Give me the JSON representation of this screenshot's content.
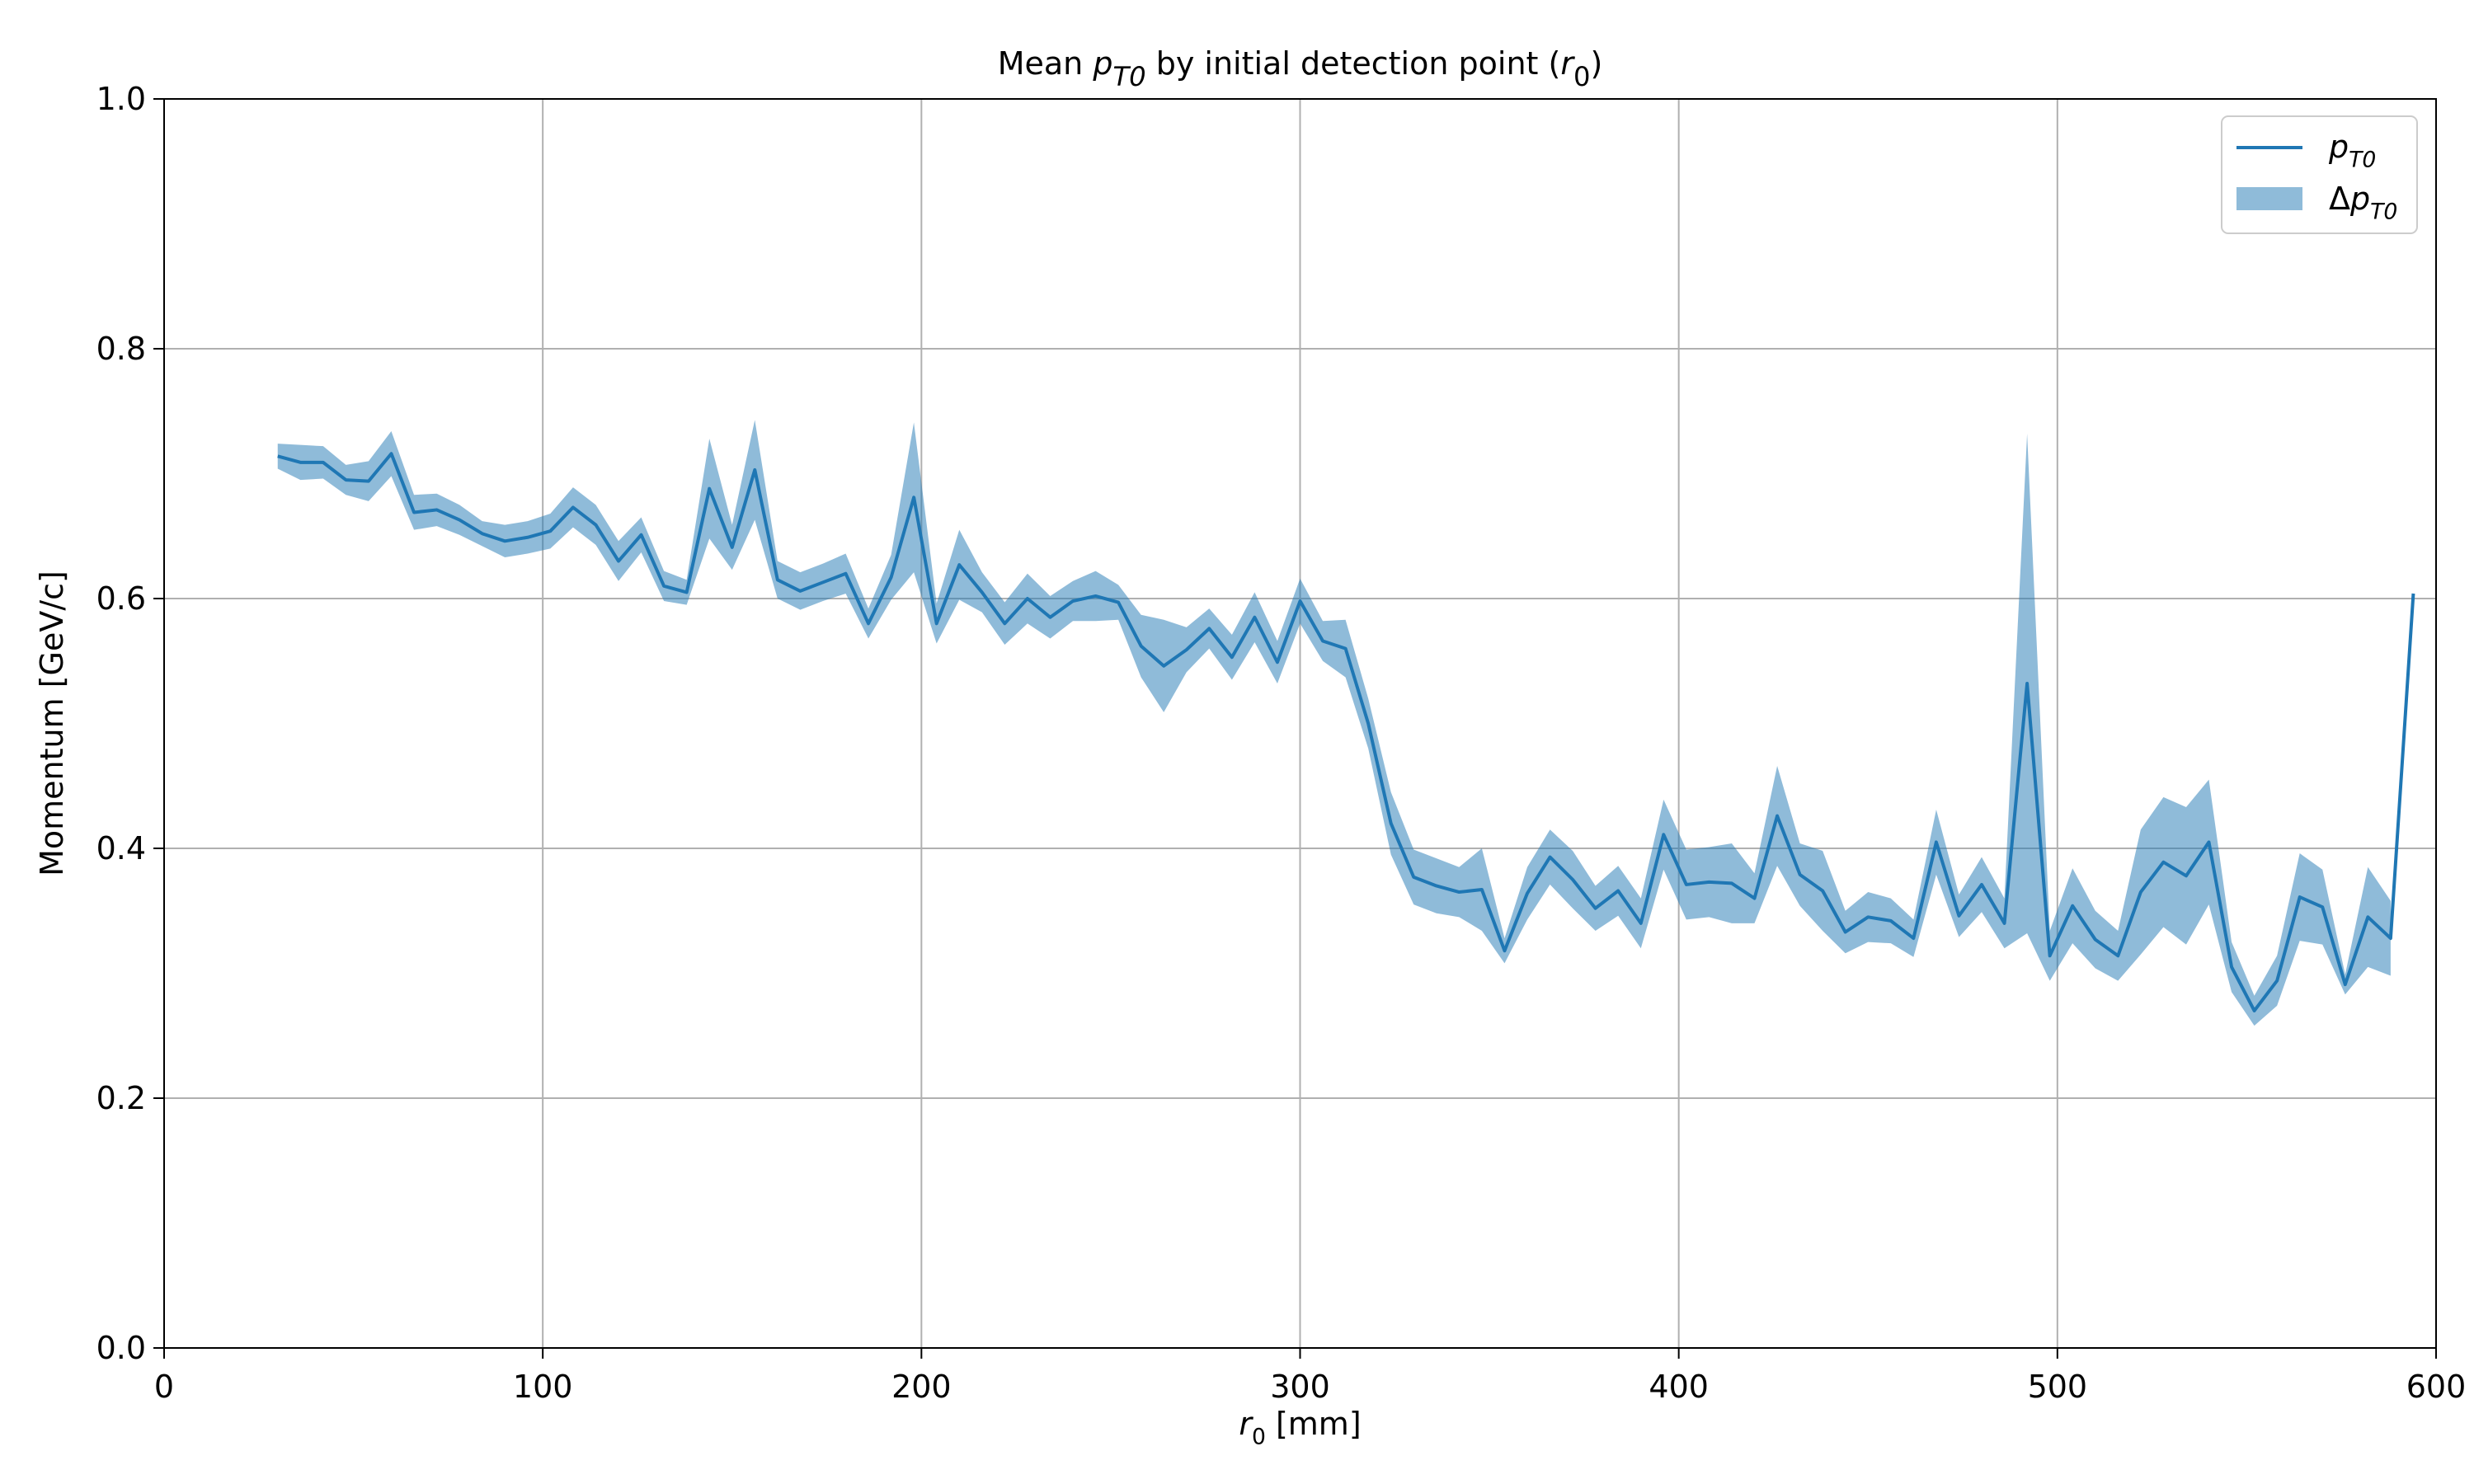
{
  "chart_data": {
    "type": "line",
    "title": [
      {
        "text": "Mean "
      },
      {
        "text": "p",
        "italic": true
      },
      {
        "text": "T0",
        "italic": true,
        "sub": true
      },
      {
        "text": " by initial detection point ("
      },
      {
        "text": "r",
        "italic": true
      },
      {
        "text": "0",
        "sub": true
      },
      {
        "text": ")"
      }
    ],
    "xlabel": [
      {
        "text": "r",
        "italic": true
      },
      {
        "text": "0",
        "sub": true
      },
      {
        "text": " [mm]"
      }
    ],
    "ylabel": [
      {
        "text": "Momentum [GeV/c]"
      }
    ],
    "x": [
      30,
      36,
      42,
      48,
      54,
      60,
      66,
      72,
      78,
      84,
      90,
      96,
      102,
      108,
      114,
      120,
      126,
      132,
      138,
      144,
      150,
      156,
      162,
      168,
      174,
      180,
      186,
      192,
      198,
      204,
      210,
      216,
      222,
      228,
      234,
      240,
      246,
      252,
      258,
      264,
      270,
      276,
      282,
      288,
      294,
      300,
      306,
      312,
      318,
      324,
      330,
      336,
      342,
      348,
      354,
      360,
      366,
      372,
      378,
      384,
      390,
      396,
      402,
      408,
      414,
      420,
      426,
      432,
      438,
      444,
      450,
      456,
      462,
      468,
      474,
      480,
      486,
      492,
      498,
      504,
      510,
      516,
      522,
      528,
      534,
      540,
      546,
      552,
      558,
      564,
      570,
      576,
      582,
      588,
      594
    ],
    "series": [
      {
        "name": [
          {
            "text": "p",
            "italic": true
          },
          {
            "text": "T0",
            "italic": true,
            "sub": true
          }
        ],
        "color": "#1f77b4",
        "values": [
          0.714,
          0.709,
          0.709,
          0.695,
          0.694,
          0.716,
          0.669,
          0.671,
          0.663,
          0.652,
          0.646,
          0.649,
          0.654,
          0.673,
          0.659,
          0.63,
          0.651,
          0.61,
          0.605,
          0.688,
          0.641,
          0.703,
          0.615,
          0.606,
          0.613,
          0.62,
          0.58,
          0.617,
          0.681,
          0.58,
          0.627,
          0.605,
          0.58,
          0.6,
          0.585,
          0.598,
          0.602,
          0.597,
          0.562,
          0.546,
          0.559,
          0.576,
          0.553,
          0.585,
          0.549,
          0.598,
          0.566,
          0.56,
          0.5,
          0.42,
          0.377,
          0.37,
          0.365,
          0.367,
          0.318,
          0.364,
          0.393,
          0.375,
          0.352,
          0.366,
          0.34,
          0.411,
          0.371,
          0.373,
          0.372,
          0.36,
          0.426,
          0.379,
          0.366,
          0.333,
          0.345,
          0.342,
          0.328,
          0.405,
          0.346,
          0.371,
          0.34,
          0.532,
          0.314,
          0.354,
          0.327,
          0.314,
          0.365,
          0.389,
          0.378,
          0.405,
          0.305,
          0.27,
          0.294,
          0.361,
          0.353,
          0.291,
          0.345,
          0.328,
          0.604
        ],
        "band_name": [
          {
            "text": "Δ"
          },
          {
            "text": "p",
            "italic": true
          },
          {
            "text": "T0",
            "italic": true,
            "sub": true
          }
        ],
        "band_opacity": 0.5,
        "errors": [
          0.01,
          0.014,
          0.013,
          0.012,
          0.016,
          0.018,
          0.014,
          0.013,
          0.012,
          0.01,
          0.013,
          0.013,
          0.014,
          0.016,
          0.016,
          0.016,
          0.014,
          0.012,
          0.01,
          0.04,
          0.018,
          0.04,
          0.015,
          0.015,
          0.015,
          0.016,
          0.012,
          0.018,
          0.06,
          0.016,
          0.028,
          0.016,
          0.017,
          0.02,
          0.017,
          0.016,
          0.02,
          0.014,
          0.025,
          0.037,
          0.018,
          0.016,
          0.018,
          0.02,
          0.017,
          0.018,
          0.016,
          0.023,
          0.02,
          0.025,
          0.022,
          0.022,
          0.02,
          0.033,
          0.01,
          0.021,
          0.022,
          0.023,
          0.018,
          0.02,
          0.02,
          0.028,
          0.028,
          0.028,
          0.032,
          0.02,
          0.04,
          0.025,
          0.032,
          0.017,
          0.02,
          0.018,
          0.015,
          0.026,
          0.017,
          0.022,
          0.02,
          0.2,
          0.02,
          0.03,
          0.023,
          0.02,
          0.05,
          0.052,
          0.055,
          0.05,
          0.02,
          0.012,
          0.02,
          0.035,
          0.03,
          0.008,
          0.04,
          0.03,
          null
        ]
      }
    ],
    "xlim": [
      0,
      600
    ],
    "xticks": [
      0,
      100,
      200,
      300,
      400,
      500,
      600
    ],
    "ylim": [
      0,
      1
    ],
    "yticks": [
      {
        "value": 0,
        "label": "0.0"
      },
      0.2,
      0.4,
      0.6,
      0.8,
      {
        "value": 1,
        "label": "1.0"
      }
    ],
    "grid": true,
    "legend": "upper right"
  }
}
